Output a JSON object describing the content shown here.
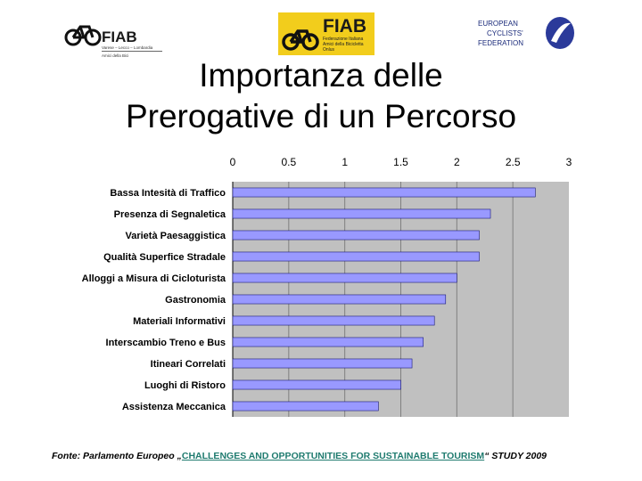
{
  "logos": {
    "left": {
      "name": "FIAB",
      "line1": "Varese – Lecco – Lombardia",
      "line2": "Amici della Bici"
    },
    "center": {
      "name": "FIAB",
      "line1": "Federazione Italiana",
      "line2": "Amici della Bicicletta",
      "line3": "Onlus"
    },
    "right": {
      "line1": "EUROPEAN",
      "line2": "CYCLISTS'",
      "line3": "FEDERATION"
    }
  },
  "title_line1": "Importanza delle",
  "title_line2": "Prerogative di un Percorso",
  "source": {
    "prefix": "Fonte: Parlamento Europeo „",
    "link": "CHALLENGES AND OPPORTUNITIES FOR SUSTAINABLE TOURISM",
    "suffix": "“ STUDY 2009"
  },
  "colors": {
    "bar": "#9999ff",
    "plot_bg": "#c0c0c0",
    "grid": "#808080"
  },
  "chart_data": {
    "type": "bar",
    "orientation": "horizontal",
    "categories": [
      "Bassa Intesità di Traffico",
      "Presenza di Segnaletica",
      "Varietà Paesaggistica",
      "Qualità Superfice Stradale",
      "Alloggi a Misura di Cicloturista",
      "Gastronomia",
      "Materiali Informativi",
      "Interscambio Treno e Bus",
      "Itineari Correlati",
      "Luoghi di Ristoro",
      "Assistenza Meccanica"
    ],
    "values": [
      2.7,
      2.3,
      2.2,
      2.2,
      2.0,
      1.9,
      1.8,
      1.7,
      1.6,
      1.5,
      1.3
    ],
    "xlim": [
      0,
      3
    ],
    "xticks": [
      "0",
      "0.5",
      "1",
      "1.5",
      "2",
      "2.5",
      "3"
    ],
    "xtick_values": [
      0,
      0.5,
      1,
      1.5,
      2,
      2.5,
      3
    ],
    "grid": true
  }
}
